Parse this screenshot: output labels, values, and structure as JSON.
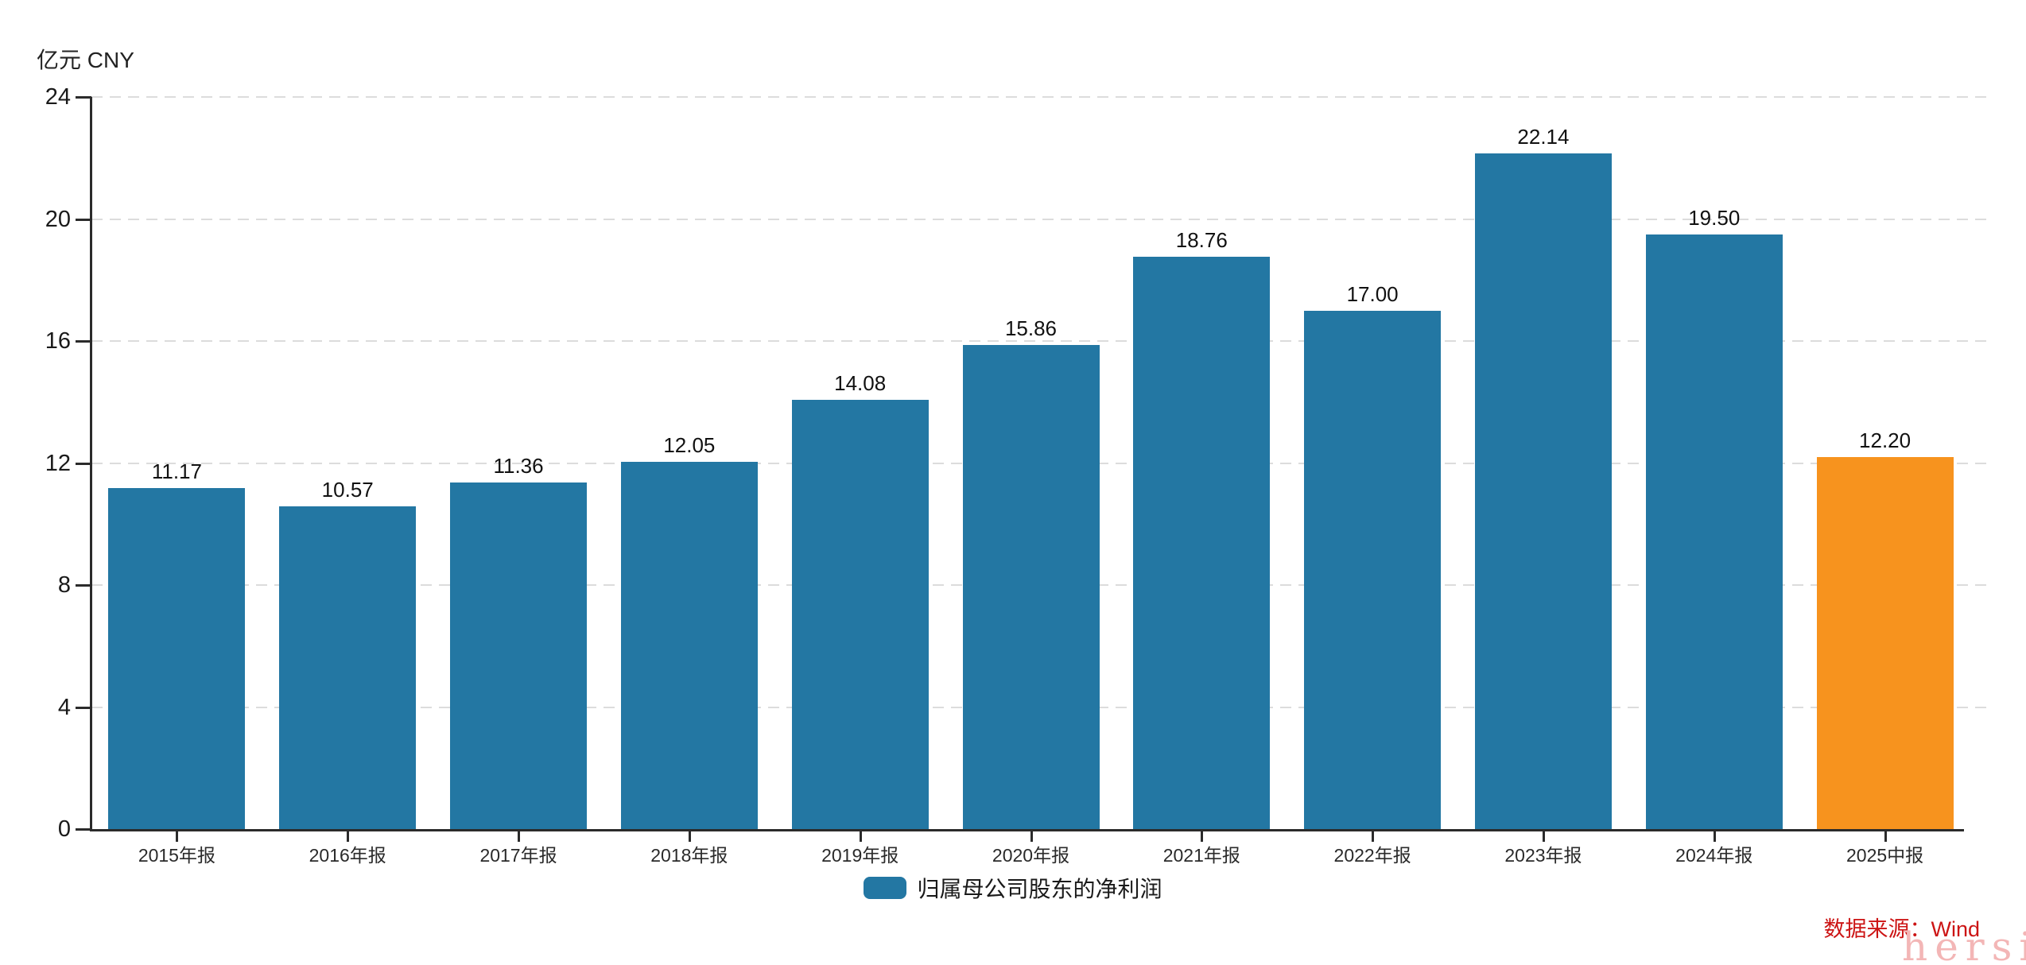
{
  "chart_data": {
    "type": "bar",
    "title": "",
    "ylabel": "亿元 CNY",
    "xlabel": "",
    "categories": [
      "2015年报",
      "2016年报",
      "2017年报",
      "2018年报",
      "2019年报",
      "2020年报",
      "2021年报",
      "2022年报",
      "2023年报",
      "2024年报",
      "2025中报"
    ],
    "values": [
      11.17,
      10.57,
      11.36,
      12.05,
      14.08,
      15.86,
      18.76,
      17.0,
      22.14,
      19.5,
      12.2
    ],
    "value_labels": [
      "11.17",
      "10.57",
      "11.36",
      "12.05",
      "14.08",
      "15.86",
      "18.76",
      "17.00",
      "22.14",
      "19.50",
      "12.20"
    ],
    "series_name": "归属母公司股东的净利润",
    "ylim": [
      0,
      24
    ],
    "yticks": [
      0,
      4,
      8,
      12,
      16,
      20,
      24
    ],
    "grid": "horizontal-dashed",
    "legend_position": "bottom-center",
    "colors": {
      "bar_primary": "#2377a3",
      "bar_highlight_last": "#f7931e",
      "axis": "#2b2b2b",
      "gridline": "#dcdcdc"
    },
    "legend": [
      {
        "label": "归属母公司股东的净利润",
        "color": "#2377a3"
      }
    ]
  },
  "footer": {
    "source_label": "数据来源：Wind",
    "source_color": "#cc1414",
    "watermark": "hersi",
    "watermark_color": "#f3b6b6"
  }
}
